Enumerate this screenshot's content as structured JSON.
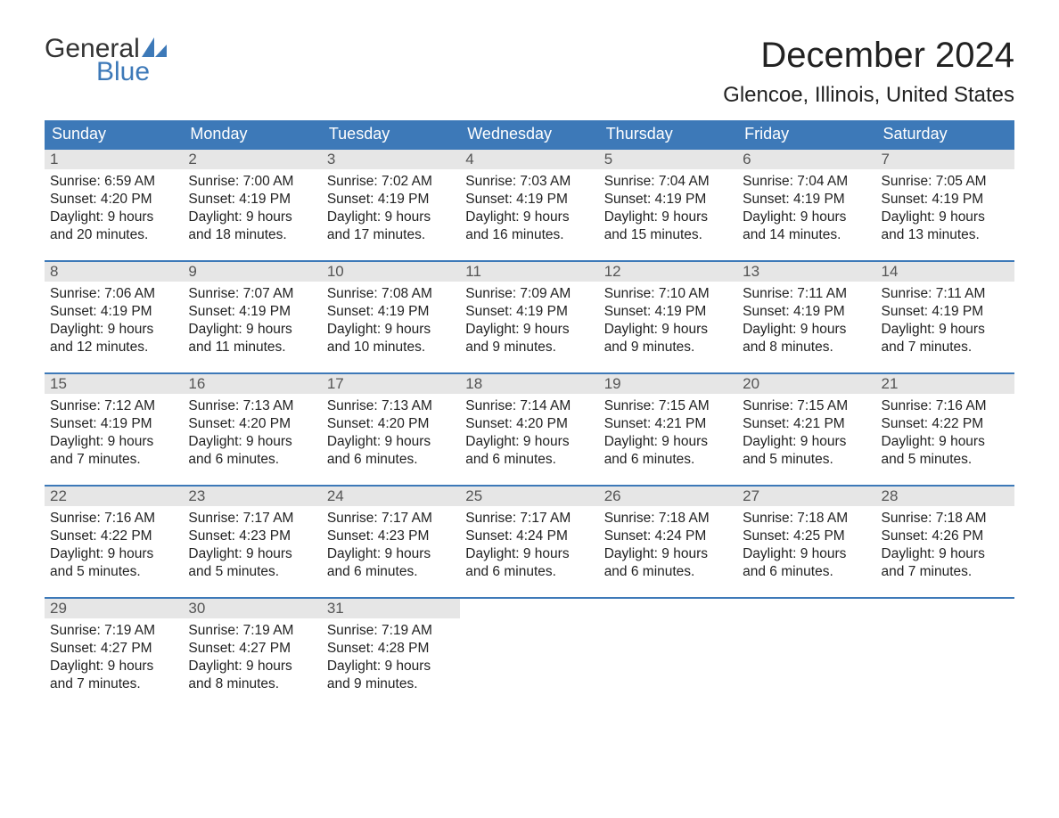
{
  "logo": {
    "word1": "General",
    "word2": "Blue"
  },
  "title": "December 2024",
  "location": "Glencoe, Illinois, United States",
  "colors": {
    "header_bg": "#3d79b8",
    "header_text": "#ffffff",
    "date_bar_bg": "#e6e6e6",
    "date_bar_text": "#555555",
    "body_text": "#222222",
    "logo_accent": "#3d79b8",
    "week_border": "#3d79b8",
    "background": "#ffffff"
  },
  "typography": {
    "title_fontsize": 40,
    "location_fontsize": 24,
    "dow_fontsize": 18,
    "date_fontsize": 17,
    "body_fontsize": 15.5,
    "logo_fontsize": 30
  },
  "daysOfWeek": [
    "Sunday",
    "Monday",
    "Tuesday",
    "Wednesday",
    "Thursday",
    "Friday",
    "Saturday"
  ],
  "weeks": [
    [
      {
        "date": "1",
        "sunrise": "Sunrise: 6:59 AM",
        "sunset": "Sunset: 4:20 PM",
        "daylight1": "Daylight: 9 hours",
        "daylight2": "and 20 minutes."
      },
      {
        "date": "2",
        "sunrise": "Sunrise: 7:00 AM",
        "sunset": "Sunset: 4:19 PM",
        "daylight1": "Daylight: 9 hours",
        "daylight2": "and 18 minutes."
      },
      {
        "date": "3",
        "sunrise": "Sunrise: 7:02 AM",
        "sunset": "Sunset: 4:19 PM",
        "daylight1": "Daylight: 9 hours",
        "daylight2": "and 17 minutes."
      },
      {
        "date": "4",
        "sunrise": "Sunrise: 7:03 AM",
        "sunset": "Sunset: 4:19 PM",
        "daylight1": "Daylight: 9 hours",
        "daylight2": "and 16 minutes."
      },
      {
        "date": "5",
        "sunrise": "Sunrise: 7:04 AM",
        "sunset": "Sunset: 4:19 PM",
        "daylight1": "Daylight: 9 hours",
        "daylight2": "and 15 minutes."
      },
      {
        "date": "6",
        "sunrise": "Sunrise: 7:04 AM",
        "sunset": "Sunset: 4:19 PM",
        "daylight1": "Daylight: 9 hours",
        "daylight2": "and 14 minutes."
      },
      {
        "date": "7",
        "sunrise": "Sunrise: 7:05 AM",
        "sunset": "Sunset: 4:19 PM",
        "daylight1": "Daylight: 9 hours",
        "daylight2": "and 13 minutes."
      }
    ],
    [
      {
        "date": "8",
        "sunrise": "Sunrise: 7:06 AM",
        "sunset": "Sunset: 4:19 PM",
        "daylight1": "Daylight: 9 hours",
        "daylight2": "and 12 minutes."
      },
      {
        "date": "9",
        "sunrise": "Sunrise: 7:07 AM",
        "sunset": "Sunset: 4:19 PM",
        "daylight1": "Daylight: 9 hours",
        "daylight2": "and 11 minutes."
      },
      {
        "date": "10",
        "sunrise": "Sunrise: 7:08 AM",
        "sunset": "Sunset: 4:19 PM",
        "daylight1": "Daylight: 9 hours",
        "daylight2": "and 10 minutes."
      },
      {
        "date": "11",
        "sunrise": "Sunrise: 7:09 AM",
        "sunset": "Sunset: 4:19 PM",
        "daylight1": "Daylight: 9 hours",
        "daylight2": "and 9 minutes."
      },
      {
        "date": "12",
        "sunrise": "Sunrise: 7:10 AM",
        "sunset": "Sunset: 4:19 PM",
        "daylight1": "Daylight: 9 hours",
        "daylight2": "and 9 minutes."
      },
      {
        "date": "13",
        "sunrise": "Sunrise: 7:11 AM",
        "sunset": "Sunset: 4:19 PM",
        "daylight1": "Daylight: 9 hours",
        "daylight2": "and 8 minutes."
      },
      {
        "date": "14",
        "sunrise": "Sunrise: 7:11 AM",
        "sunset": "Sunset: 4:19 PM",
        "daylight1": "Daylight: 9 hours",
        "daylight2": "and 7 minutes."
      }
    ],
    [
      {
        "date": "15",
        "sunrise": "Sunrise: 7:12 AM",
        "sunset": "Sunset: 4:19 PM",
        "daylight1": "Daylight: 9 hours",
        "daylight2": "and 7 minutes."
      },
      {
        "date": "16",
        "sunrise": "Sunrise: 7:13 AM",
        "sunset": "Sunset: 4:20 PM",
        "daylight1": "Daylight: 9 hours",
        "daylight2": "and 6 minutes."
      },
      {
        "date": "17",
        "sunrise": "Sunrise: 7:13 AM",
        "sunset": "Sunset: 4:20 PM",
        "daylight1": "Daylight: 9 hours",
        "daylight2": "and 6 minutes."
      },
      {
        "date": "18",
        "sunrise": "Sunrise: 7:14 AM",
        "sunset": "Sunset: 4:20 PM",
        "daylight1": "Daylight: 9 hours",
        "daylight2": "and 6 minutes."
      },
      {
        "date": "19",
        "sunrise": "Sunrise: 7:15 AM",
        "sunset": "Sunset: 4:21 PM",
        "daylight1": "Daylight: 9 hours",
        "daylight2": "and 6 minutes."
      },
      {
        "date": "20",
        "sunrise": "Sunrise: 7:15 AM",
        "sunset": "Sunset: 4:21 PM",
        "daylight1": "Daylight: 9 hours",
        "daylight2": "and 5 minutes."
      },
      {
        "date": "21",
        "sunrise": "Sunrise: 7:16 AM",
        "sunset": "Sunset: 4:22 PM",
        "daylight1": "Daylight: 9 hours",
        "daylight2": "and 5 minutes."
      }
    ],
    [
      {
        "date": "22",
        "sunrise": "Sunrise: 7:16 AM",
        "sunset": "Sunset: 4:22 PM",
        "daylight1": "Daylight: 9 hours",
        "daylight2": "and 5 minutes."
      },
      {
        "date": "23",
        "sunrise": "Sunrise: 7:17 AM",
        "sunset": "Sunset: 4:23 PM",
        "daylight1": "Daylight: 9 hours",
        "daylight2": "and 5 minutes."
      },
      {
        "date": "24",
        "sunrise": "Sunrise: 7:17 AM",
        "sunset": "Sunset: 4:23 PM",
        "daylight1": "Daylight: 9 hours",
        "daylight2": "and 6 minutes."
      },
      {
        "date": "25",
        "sunrise": "Sunrise: 7:17 AM",
        "sunset": "Sunset: 4:24 PM",
        "daylight1": "Daylight: 9 hours",
        "daylight2": "and 6 minutes."
      },
      {
        "date": "26",
        "sunrise": "Sunrise: 7:18 AM",
        "sunset": "Sunset: 4:24 PM",
        "daylight1": "Daylight: 9 hours",
        "daylight2": "and 6 minutes."
      },
      {
        "date": "27",
        "sunrise": "Sunrise: 7:18 AM",
        "sunset": "Sunset: 4:25 PM",
        "daylight1": "Daylight: 9 hours",
        "daylight2": "and 6 minutes."
      },
      {
        "date": "28",
        "sunrise": "Sunrise: 7:18 AM",
        "sunset": "Sunset: 4:26 PM",
        "daylight1": "Daylight: 9 hours",
        "daylight2": "and 7 minutes."
      }
    ],
    [
      {
        "date": "29",
        "sunrise": "Sunrise: 7:19 AM",
        "sunset": "Sunset: 4:27 PM",
        "daylight1": "Daylight: 9 hours",
        "daylight2": "and 7 minutes."
      },
      {
        "date": "30",
        "sunrise": "Sunrise: 7:19 AM",
        "sunset": "Sunset: 4:27 PM",
        "daylight1": "Daylight: 9 hours",
        "daylight2": "and 8 minutes."
      },
      {
        "date": "31",
        "sunrise": "Sunrise: 7:19 AM",
        "sunset": "Sunset: 4:28 PM",
        "daylight1": "Daylight: 9 hours",
        "daylight2": "and 9 minutes."
      },
      {
        "empty": true
      },
      {
        "empty": true
      },
      {
        "empty": true
      },
      {
        "empty": true
      }
    ]
  ]
}
